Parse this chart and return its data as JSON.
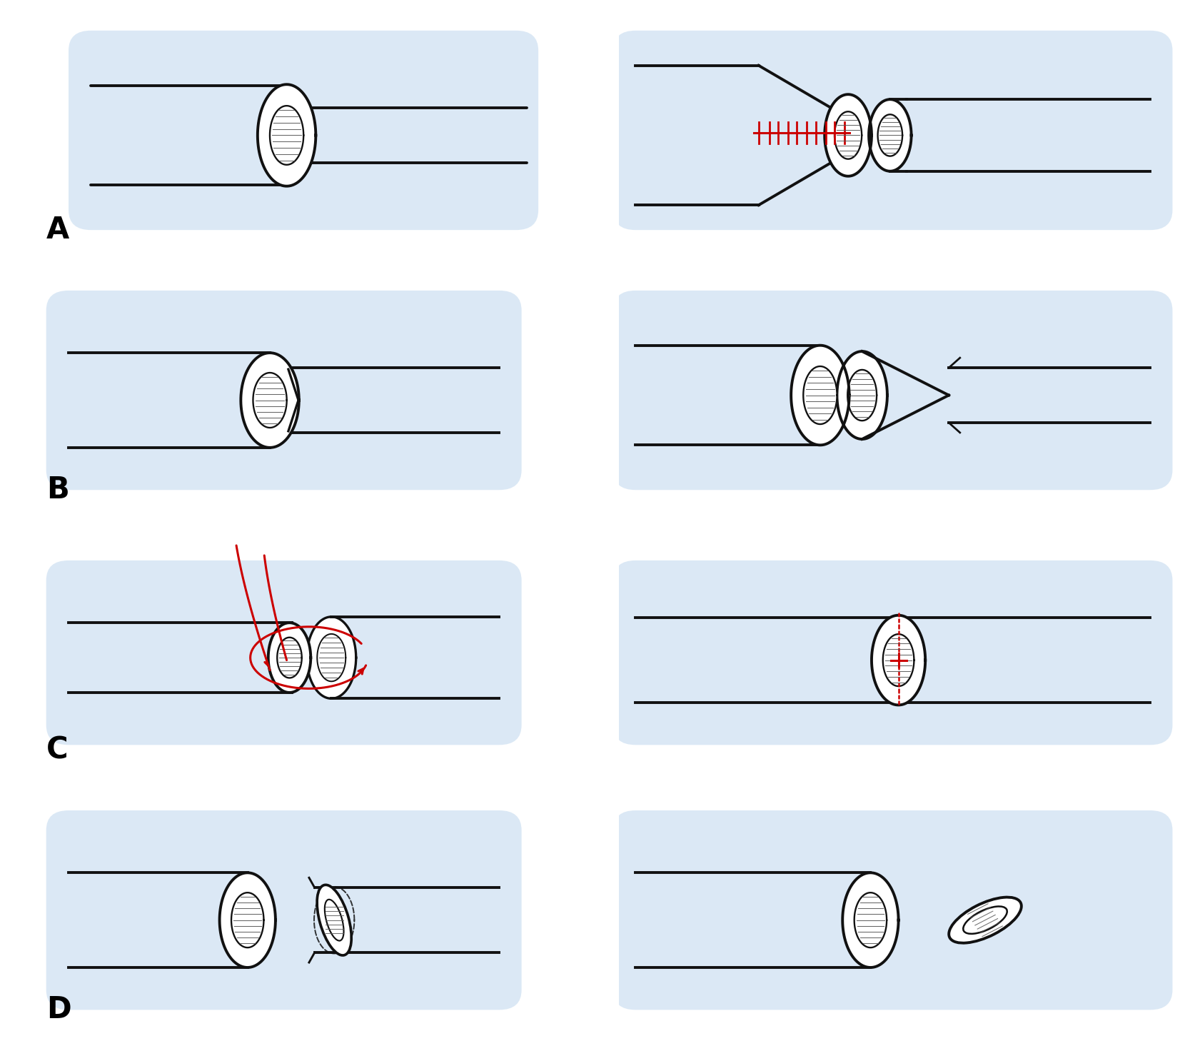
{
  "bg_color": "#ffffff",
  "panel_bg_color": "#c8ddf0",
  "vessel_color": "#111111",
  "vessel_lw": 2.8,
  "red_color": "#cc0000",
  "label_fontsize": 30,
  "labels": [
    "A",
    "B",
    "C",
    "D"
  ],
  "fig_width": 16.67,
  "fig_height": 14.86
}
